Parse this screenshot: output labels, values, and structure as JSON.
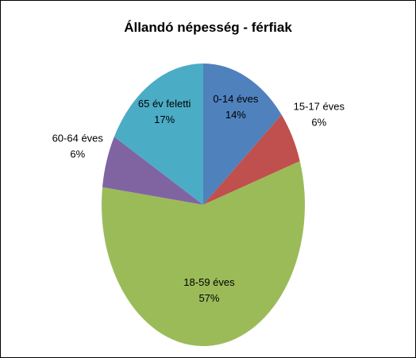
{
  "chart_data": {
    "type": "pie",
    "title": "Állandó népesség - férfiak",
    "categories": [
      "0-14 éves",
      "15-17 éves",
      "18-59 éves",
      "60-64 éves",
      "65 év feletti"
    ],
    "values": [
      14,
      6,
      57,
      6,
      17
    ],
    "value_labels": [
      "14%",
      "6%",
      "57%",
      "6%",
      "17%"
    ],
    "colors": [
      "#4f81bd",
      "#c0504d",
      "#9bbb59",
      "#8064a2",
      "#4bacc6"
    ]
  }
}
